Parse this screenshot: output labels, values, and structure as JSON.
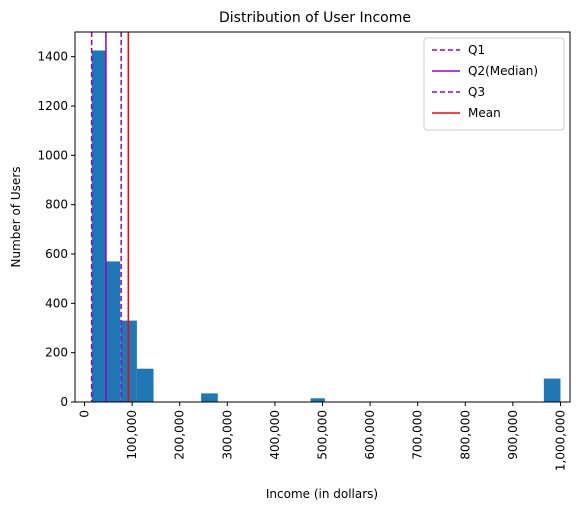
{
  "chart_data": {
    "type": "bar",
    "title": "Distribution of User Income",
    "xlabel": "Income (in dollars)",
    "ylabel": "Number of Users",
    "xlim": [
      -20000,
      1020000
    ],
    "ylim": [
      0,
      1500
    ],
    "x_ticks": [
      0,
      100000,
      200000,
      300000,
      400000,
      500000,
      600000,
      700000,
      800000,
      900000,
      1000000
    ],
    "x_tick_labels": [
      "0",
      "100,000",
      "200,000",
      "300,000",
      "400,000",
      "500,000",
      "600,000",
      "700,000",
      "800,000",
      "900,000",
      "1,000,000"
    ],
    "y_ticks": [
      0,
      200,
      400,
      600,
      800,
      1000,
      1200,
      1400
    ],
    "y_tick_labels": [
      "0",
      "200",
      "400",
      "600",
      "800",
      "1000",
      "1200",
      "1400"
    ],
    "bar_color": "#1f77b4",
    "bars": [
      {
        "x0": 15000,
        "x1": 45000,
        "value": 1425
      },
      {
        "x0": 45000,
        "x1": 75000,
        "value": 570
      },
      {
        "x0": 75000,
        "x1": 110000,
        "value": 330
      },
      {
        "x0": 110000,
        "x1": 145000,
        "value": 135
      },
      {
        "x0": 245000,
        "x1": 280000,
        "value": 35
      },
      {
        "x0": 475000,
        "x1": 505000,
        "value": 15
      },
      {
        "x0": 965000,
        "x1": 1000000,
        "value": 95
      }
    ],
    "reference_lines": [
      {
        "name": "Q1",
        "x": 15000,
        "color": "#9400d3",
        "dashed": true
      },
      {
        "name": "Q2(Median)",
        "x": 45000,
        "color": "#9400d3",
        "dashed": false
      },
      {
        "name": "Q3",
        "x": 77000,
        "color": "#9400d3",
        "dashed": true
      },
      {
        "name": "Mean",
        "x": 92000,
        "color": "#ff0000",
        "dashed": false
      }
    ],
    "legend_position": "top-right",
    "grid": false
  }
}
